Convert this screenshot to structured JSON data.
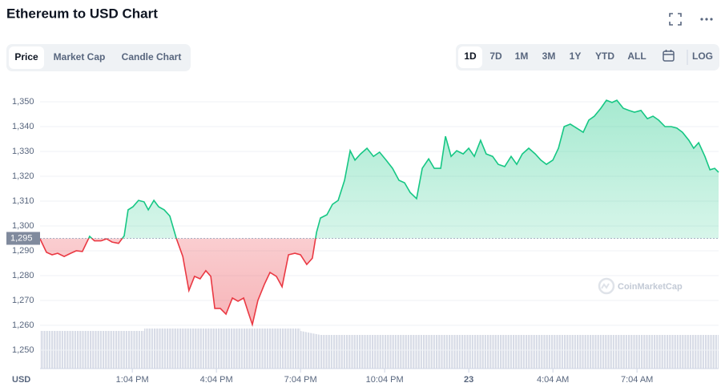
{
  "chart_data": {
    "type": "line",
    "title": "Ethereum to USD Chart",
    "tabs": [
      "Price",
      "Market Cap",
      "Candle Chart"
    ],
    "ranges": [
      "1D",
      "7D",
      "1M",
      "3M",
      "1Y",
      "YTD",
      "ALL"
    ],
    "log_label": "LOG",
    "currency": "USD",
    "watermark": "CoinMarketCap",
    "up_color": "#16c784",
    "down_color": "#ea3943",
    "baseline": {
      "value": 1295,
      "label": "1,295"
    },
    "grid": true,
    "xlim": [
      0,
      24.2
    ],
    "ylim": [
      1240,
      1355
    ],
    "yticks": [
      {
        "value": 1250,
        "label": "1,250"
      },
      {
        "value": 1260,
        "label": "1,260"
      },
      {
        "value": 1270,
        "label": "1,270"
      },
      {
        "value": 1280,
        "label": "1,280"
      },
      {
        "value": 1290,
        "label": "1,290"
      },
      {
        "value": 1300,
        "label": "1,300"
      },
      {
        "value": 1310,
        "label": "1,310"
      },
      {
        "value": 1320,
        "label": "1,320"
      },
      {
        "value": 1330,
        "label": "1,330"
      },
      {
        "value": 1340,
        "label": "1,340"
      },
      {
        "value": 1350,
        "label": "1,350"
      }
    ],
    "xticks": [
      {
        "value": 3.29,
        "label": "1:04 PM"
      },
      {
        "value": 6.29,
        "label": "4:04 PM"
      },
      {
        "value": 9.29,
        "label": "7:04 PM"
      },
      {
        "value": 12.29,
        "label": "10:04 PM"
      },
      {
        "value": 15.29,
        "label": "23"
      },
      {
        "value": 18.29,
        "label": "4:04 AM"
      },
      {
        "value": 21.29,
        "label": "7:04 AM"
      }
    ],
    "x": [
      0,
      0.23,
      0.43,
      0.63,
      0.86,
      1.09,
      1.29,
      1.51,
      1.77,
      1.94,
      2.17,
      2.37,
      2.57,
      2.8,
      3,
      3.14,
      3.31,
      3.51,
      3.71,
      3.86,
      4.06,
      4.23,
      4.43,
      4.63,
      4.86,
      5.09,
      5.31,
      5.51,
      5.71,
      5.91,
      6.09,
      6.23,
      6.43,
      6.63,
      6.86,
      7.06,
      7.26,
      7.43,
      7.57,
      7.77,
      8,
      8.2,
      8.43,
      8.63,
      8.86,
      9.09,
      9.29,
      9.51,
      9.71,
      9.86,
      10,
      10.23,
      10.43,
      10.63,
      10.86,
      11.06,
      11.23,
      11.43,
      11.66,
      11.89,
      12.11,
      12.34,
      12.57,
      12.8,
      13,
      13.2,
      13.43,
      13.63,
      13.86,
      14.06,
      14.29,
      14.46,
      14.66,
      14.86,
      15.09,
      15.29,
      15.49,
      15.71,
      15.91,
      16.14,
      16.34,
      16.57,
      16.8,
      17,
      17.2,
      17.43,
      17.66,
      17.86,
      18.06,
      18.29,
      18.49,
      18.69,
      18.91,
      19.14,
      19.37,
      19.57,
      19.77,
      20,
      20.2,
      20.4,
      20.57,
      20.8,
      21,
      21.2,
      21.43,
      21.66,
      21.86,
      22.06,
      22.29,
      22.51,
      22.71,
      22.91,
      23.14,
      23.31,
      23.49,
      23.71,
      23.89,
      24.06,
      24.2
    ],
    "values": [
      1294.8,
      1289.4,
      1288.4,
      1289,
      1287.7,
      1289,
      1290,
      1289.7,
      1295.8,
      1294,
      1294,
      1294.8,
      1293.5,
      1293,
      1296,
      1306.5,
      1307.7,
      1310.3,
      1309.7,
      1306.5,
      1310.3,
      1307.7,
      1306.5,
      1304,
      1295,
      1287.7,
      1274,
      1279.7,
      1278.7,
      1282,
      1279.7,
      1266.8,
      1266.8,
      1264.5,
      1271,
      1269.7,
      1271,
      1265,
      1260.3,
      1270,
      1276.5,
      1281.3,
      1279.7,
      1275.5,
      1288.4,
      1289,
      1288.4,
      1284.5,
      1287,
      1297.4,
      1303.2,
      1304.5,
      1308.7,
      1310.3,
      1318.4,
      1330.3,
      1326.5,
      1329,
      1331.3,
      1328,
      1329.7,
      1326.5,
      1323.2,
      1318.4,
      1317.4,
      1313.5,
      1311,
      1323.2,
      1327,
      1323.2,
      1323.2,
      1336.1,
      1328,
      1330.3,
      1329,
      1331.3,
      1328,
      1334.5,
      1329,
      1328,
      1324.8,
      1323.9,
      1328,
      1324.8,
      1329,
      1331.3,
      1329,
      1326.5,
      1324.8,
      1326.5,
      1331.3,
      1340,
      1341,
      1339.4,
      1337.7,
      1342.6,
      1344.2,
      1347.4,
      1350.6,
      1349.7,
      1350.6,
      1347.4,
      1346.5,
      1345.8,
      1346.5,
      1343.2,
      1344.2,
      1342.6,
      1340,
      1340,
      1339.4,
      1337.7,
      1334.5,
      1331.3,
      1333.5,
      1328,
      1322.6,
      1323.2,
      1321.6
    ]
  }
}
